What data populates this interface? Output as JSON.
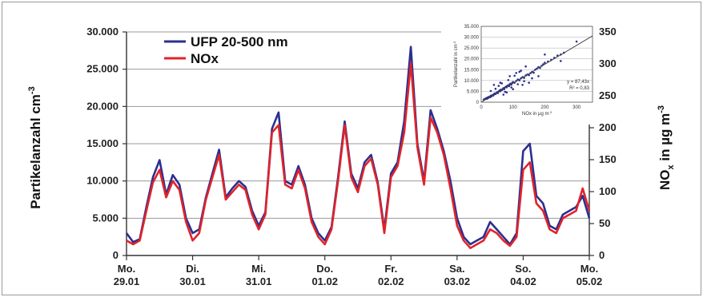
{
  "chart_data": {
    "type": "line",
    "legend": {
      "placement": "top-left",
      "entries": [
        "UFP 20-500 nm",
        "NOx"
      ]
    },
    "ylabel_left": "Partikelanzahl cm",
    "ylabel_left_sup": "-3",
    "ylabel_right_prefix": "NO",
    "ylabel_right_sub": "x",
    "ylabel_right_mid": " in µg m",
    "ylabel_right_sup": "-3",
    "ylim_left": [
      0,
      30000
    ],
    "ylim_right": [
      0,
      350
    ],
    "left_ticks": [
      "0",
      "5.000",
      "10.000",
      "15.000",
      "20.000",
      "25.000",
      "30.000"
    ],
    "right_ticks": [
      "0",
      "50",
      "100",
      "150",
      "200",
      "250",
      "300",
      "350"
    ],
    "x_days": [
      "Mo.",
      "Di.",
      "Mi.",
      "Do.",
      "Fr.",
      "Sa.",
      "So.",
      "Mo."
    ],
    "x_dates": [
      "29.01",
      "30.01",
      "31.01",
      "01.02",
      "02.02",
      "03.02",
      "04.02",
      "05.02"
    ],
    "grid": true,
    "series": [
      {
        "name": "UFP 20-500 nm",
        "color": "#2b2f8f",
        "axis": "left",
        "x": [
          0,
          0.1,
          0.2,
          0.3,
          0.4,
          0.5,
          0.6,
          0.7,
          0.8,
          0.9,
          1.0,
          1.1,
          1.2,
          1.3,
          1.4,
          1.5,
          1.6,
          1.7,
          1.8,
          1.9,
          2.0,
          2.1,
          2.2,
          2.3,
          2.4,
          2.5,
          2.6,
          2.7,
          2.8,
          2.9,
          3.0,
          3.1,
          3.2,
          3.3,
          3.4,
          3.5,
          3.6,
          3.7,
          3.8,
          3.9,
          4.0,
          4.1,
          4.2,
          4.3,
          4.4,
          4.5,
          4.6,
          4.7,
          4.8,
          4.9,
          5.0,
          5.1,
          5.2,
          5.3,
          5.4,
          5.5,
          5.6,
          5.7,
          5.8,
          5.9,
          6.0,
          6.1,
          6.2,
          6.3,
          6.4,
          6.5,
          6.6,
          6.7,
          6.8,
          6.9,
          7.0
        ],
        "y": [
          3000,
          1800,
          2200,
          6500,
          10500,
          12800,
          8200,
          10800,
          9500,
          5000,
          3000,
          3500,
          7800,
          11000,
          14200,
          7800,
          9000,
          10000,
          9200,
          6000,
          4000,
          5800,
          17000,
          19200,
          10000,
          9500,
          12000,
          9500,
          5000,
          3000,
          2000,
          3800,
          10500,
          18000,
          11000,
          9000,
          12500,
          13500,
          9800,
          3500,
          11000,
          12500,
          18000,
          28000,
          15000,
          10000,
          19500,
          17000,
          14000,
          10000,
          5000,
          2500,
          1500,
          2000,
          2500,
          4500,
          3500,
          2500,
          1500,
          3000,
          14000,
          15000,
          8000,
          7000,
          4000,
          3500,
          5500,
          6000,
          6500,
          8000,
          5000
        ]
      },
      {
        "name": "NOx",
        "color": "#e0232a",
        "axis": "left",
        "x": [
          0,
          0.1,
          0.2,
          0.3,
          0.4,
          0.5,
          0.6,
          0.7,
          0.8,
          0.9,
          1.0,
          1.1,
          1.2,
          1.3,
          1.4,
          1.5,
          1.6,
          1.7,
          1.8,
          1.9,
          2.0,
          2.1,
          2.2,
          2.3,
          2.4,
          2.5,
          2.6,
          2.7,
          2.8,
          2.9,
          3.0,
          3.1,
          3.2,
          3.3,
          3.4,
          3.5,
          3.6,
          3.7,
          3.8,
          3.9,
          4.0,
          4.1,
          4.2,
          4.3,
          4.4,
          4.5,
          4.6,
          4.7,
          4.8,
          4.9,
          5.0,
          5.1,
          5.2,
          5.3,
          5.4,
          5.5,
          5.6,
          5.7,
          5.8,
          5.9,
          6.0,
          6.1,
          6.2,
          6.3,
          6.4,
          6.5,
          6.6,
          6.7,
          6.8,
          6.9,
          7.0
        ],
        "y": [
          2000,
          1500,
          2000,
          6000,
          9800,
          11500,
          7800,
          10000,
          8800,
          4500,
          2000,
          3000,
          7500,
          10500,
          13500,
          7500,
          8500,
          9500,
          8800,
          5500,
          3500,
          5500,
          16500,
          17500,
          9500,
          9000,
          11500,
          9000,
          4500,
          2500,
          1500,
          3500,
          10000,
          17500,
          10500,
          8500,
          12000,
          13000,
          9500,
          3000,
          10500,
          12000,
          16500,
          25800,
          14500,
          9500,
          18500,
          16500,
          13500,
          9000,
          4000,
          2000,
          1000,
          1500,
          2000,
          3500,
          3000,
          2000,
          1300,
          2500,
          11500,
          12500,
          7000,
          6000,
          3500,
          3000,
          5000,
          5500,
          6000,
          9000,
          6000
        ]
      }
    ],
    "inset": {
      "type": "scatter",
      "xlabel": "NOx in µg m",
      "xlabel_sup": "-3",
      "ylabel": "Partikelanzahl in cm",
      "ylabel_sup": "-3",
      "xlim": [
        0,
        350
      ],
      "ylim": [
        0,
        35000
      ],
      "x_ticks": [
        "0",
        "100",
        "200",
        "300"
      ],
      "y_ticks": [
        "0",
        "5.000",
        "10.000",
        "15.000",
        "20.000",
        "25.000",
        "30.000",
        "35.000"
      ],
      "equation": "y = 87,43x",
      "r2": "R² = 0,83",
      "slope": 87.43,
      "points": [
        [
          8,
          1200
        ],
        [
          12,
          1500
        ],
        [
          15,
          1800
        ],
        [
          18,
          1600
        ],
        [
          20,
          2200
        ],
        [
          22,
          1900
        ],
        [
          25,
          2500
        ],
        [
          28,
          2300
        ],
        [
          30,
          3000
        ],
        [
          32,
          2700
        ],
        [
          35,
          3300
        ],
        [
          38,
          3100
        ],
        [
          40,
          3600
        ],
        [
          42,
          4000
        ],
        [
          45,
          3800
        ],
        [
          48,
          4300
        ],
        [
          50,
          4600
        ],
        [
          52,
          4200
        ],
        [
          55,
          5000
        ],
        [
          58,
          5400
        ],
        [
          60,
          5100
        ],
        [
          62,
          5800
        ],
        [
          65,
          5600
        ],
        [
          68,
          6100
        ],
        [
          70,
          6500
        ],
        [
          72,
          6000
        ],
        [
          75,
          6800
        ],
        [
          78,
          7200
        ],
        [
          80,
          6900
        ],
        [
          82,
          7500
        ],
        [
          85,
          7800
        ],
        [
          88,
          7400
        ],
        [
          90,
          8200
        ],
        [
          92,
          8600
        ],
        [
          95,
          8100
        ],
        [
          98,
          8900
        ],
        [
          100,
          9300
        ],
        [
          105,
          9000
        ],
        [
          110,
          9800
        ],
        [
          115,
          10500
        ],
        [
          120,
          10100
        ],
        [
          125,
          11000
        ],
        [
          130,
          11600
        ],
        [
          135,
          11200
        ],
        [
          140,
          12300
        ],
        [
          145,
          12800
        ],
        [
          150,
          12500
        ],
        [
          155,
          13400
        ],
        [
          160,
          14000
        ],
        [
          165,
          13600
        ],
        [
          170,
          15000
        ],
        [
          175,
          15500
        ],
        [
          180,
          16200
        ],
        [
          185,
          15800
        ],
        [
          190,
          16800
        ],
        [
          195,
          17500
        ],
        [
          200,
          18200
        ],
        [
          210,
          18800
        ],
        [
          220,
          19500
        ],
        [
          230,
          20500
        ],
        [
          240,
          21500
        ],
        [
          250,
          22000
        ],
        [
          260,
          22800
        ],
        [
          300,
          28000
        ],
        [
          40,
          8000
        ],
        [
          60,
          9000
        ],
        [
          80,
          4500
        ],
        [
          100,
          6000
        ],
        [
          120,
          14000
        ],
        [
          150,
          9000
        ],
        [
          90,
          12000
        ],
        [
          70,
          3500
        ],
        [
          180,
          12000
        ],
        [
          140,
          16500
        ],
        [
          55,
          7500
        ],
        [
          110,
          13500
        ],
        [
          200,
          22000
        ],
        [
          160,
          11000
        ],
        [
          130,
          8000
        ],
        [
          250,
          19000
        ],
        [
          30,
          5200
        ],
        [
          45,
          6200
        ],
        [
          65,
          8700
        ],
        [
          85,
          10200
        ],
        [
          105,
          12200
        ],
        [
          125,
          14500
        ],
        [
          75,
          4800
        ],
        [
          95,
          6800
        ],
        [
          115,
          8300
        ],
        [
          135,
          9700
        ]
      ]
    }
  }
}
